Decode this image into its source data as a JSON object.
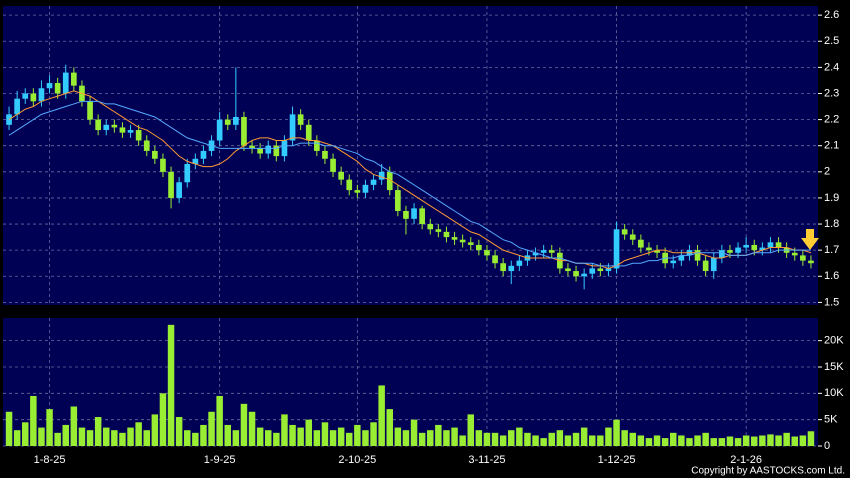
{
  "chart_data": [
    {
      "type": "candlestick",
      "up_color": "#33ccff",
      "down_color": "#99ee33",
      "grid": true,
      "ylim": [
        1.49,
        2.635
      ],
      "yticks": [
        1.5,
        1.6,
        1.7,
        1.8,
        1.9,
        2,
        2.1,
        2.2,
        2.3,
        2.4,
        2.5,
        2.6
      ],
      "categories": [
        null,
        null,
        null,
        null,
        null,
        "1-8-25",
        null,
        null,
        null,
        null,
        null,
        null,
        null,
        null,
        null,
        null,
        null,
        null,
        null,
        null,
        null,
        null,
        null,
        null,
        null,
        null,
        "1-9-25",
        null,
        null,
        null,
        null,
        null,
        null,
        null,
        null,
        null,
        null,
        null,
        null,
        null,
        null,
        null,
        null,
        "2-10-25",
        null,
        null,
        null,
        null,
        null,
        null,
        null,
        null,
        null,
        null,
        null,
        null,
        null,
        null,
        null,
        "3-11-25",
        null,
        null,
        null,
        null,
        null,
        null,
        null,
        null,
        null,
        null,
        null,
        null,
        null,
        null,
        null,
        "1-12-25",
        null,
        null,
        null,
        null,
        null,
        null,
        null,
        null,
        null,
        null,
        null,
        null,
        null,
        null,
        null,
        "2-1-26",
        null,
        null,
        null,
        null,
        null,
        null,
        null,
        null
      ],
      "open": [
        2.18,
        2.22,
        2.28,
        2.3,
        2.27,
        2.32,
        2.34,
        2.3,
        2.38,
        2.33,
        2.27,
        2.2,
        2.16,
        2.18,
        2.17,
        2.15,
        2.16,
        2.12,
        2.08,
        2.05,
        2.0,
        1.9,
        1.96,
        2.03,
        2.05,
        2.08,
        2.12,
        2.2,
        2.18,
        2.21,
        2.1,
        2.09,
        2.07,
        2.1,
        2.06,
        2.12,
        2.22,
        2.18,
        2.12,
        2.08,
        2.05,
        2.0,
        1.97,
        1.93,
        1.92,
        1.95,
        1.97,
        2.0,
        1.93,
        1.85,
        1.82,
        1.86,
        1.8,
        1.78,
        1.77,
        1.75,
        1.74,
        1.73,
        1.72,
        1.7,
        1.68,
        1.65,
        1.62,
        1.64,
        1.66,
        1.68,
        1.69,
        1.7,
        1.69,
        1.63,
        1.62,
        1.6,
        1.61,
        1.63,
        1.62,
        1.63,
        1.78,
        1.76,
        1.74,
        1.71,
        1.7,
        1.69,
        1.65,
        1.66,
        1.68,
        1.7,
        1.66,
        1.62,
        1.67,
        1.7,
        1.69,
        1.71,
        1.72,
        1.7,
        1.71,
        1.73,
        1.71,
        1.69,
        1.68,
        1.66
      ],
      "high": [
        2.25,
        2.31,
        2.32,
        2.32,
        2.35,
        2.37,
        2.36,
        2.41,
        2.4,
        2.35,
        2.29,
        2.22,
        2.2,
        2.2,
        2.19,
        2.18,
        2.18,
        2.14,
        2.1,
        2.07,
        2.02,
        1.98,
        2.05,
        2.07,
        2.1,
        2.14,
        2.23,
        2.22,
        2.4,
        2.23,
        2.12,
        2.11,
        2.12,
        2.12,
        2.14,
        2.25,
        2.24,
        2.2,
        2.14,
        2.1,
        2.07,
        2.02,
        1.99,
        1.95,
        1.97,
        1.99,
        2.03,
        2.02,
        1.95,
        1.87,
        1.88,
        1.87,
        1.82,
        1.8,
        1.79,
        1.77,
        1.76,
        1.75,
        1.74,
        1.72,
        1.7,
        1.67,
        1.66,
        1.68,
        1.7,
        1.71,
        1.72,
        1.72,
        1.71,
        1.65,
        1.64,
        1.63,
        1.65,
        1.65,
        1.65,
        1.81,
        1.8,
        1.78,
        1.76,
        1.73,
        1.72,
        1.71,
        1.68,
        1.7,
        1.72,
        1.72,
        1.68,
        1.69,
        1.72,
        1.72,
        1.73,
        1.75,
        1.74,
        1.73,
        1.75,
        1.75,
        1.73,
        1.71,
        1.7,
        1.68
      ],
      "low": [
        2.16,
        2.2,
        2.26,
        2.25,
        2.25,
        2.3,
        2.28,
        2.28,
        2.31,
        2.25,
        2.18,
        2.14,
        2.14,
        2.15,
        2.13,
        2.13,
        2.1,
        2.06,
        2.03,
        1.98,
        1.86,
        1.88,
        1.94,
        2.01,
        2.03,
        2.06,
        2.1,
        2.16,
        2.16,
        2.08,
        2.07,
        2.05,
        2.05,
        2.04,
        2.04,
        2.1,
        2.16,
        2.1,
        2.06,
        2.03,
        1.98,
        1.95,
        1.91,
        1.9,
        1.9,
        1.93,
        1.95,
        1.91,
        1.83,
        1.76,
        1.8,
        1.78,
        1.76,
        1.75,
        1.73,
        1.72,
        1.71,
        1.7,
        1.68,
        1.66,
        1.63,
        1.6,
        1.57,
        1.62,
        1.64,
        1.66,
        1.67,
        1.67,
        1.61,
        1.6,
        1.58,
        1.55,
        1.59,
        1.6,
        1.6,
        1.61,
        1.74,
        1.72,
        1.69,
        1.68,
        1.67,
        1.63,
        1.63,
        1.64,
        1.66,
        1.64,
        1.6,
        1.59,
        1.65,
        1.67,
        1.67,
        1.69,
        1.68,
        1.68,
        1.69,
        1.69,
        1.67,
        1.66,
        1.64,
        1.63
      ],
      "close": [
        2.22,
        2.28,
        2.3,
        2.27,
        2.32,
        2.34,
        2.3,
        2.38,
        2.33,
        2.27,
        2.2,
        2.16,
        2.18,
        2.17,
        2.15,
        2.16,
        2.12,
        2.08,
        2.05,
        2.0,
        1.9,
        1.96,
        2.03,
        2.05,
        2.08,
        2.12,
        2.2,
        2.18,
        2.21,
        2.1,
        2.09,
        2.07,
        2.1,
        2.06,
        2.12,
        2.22,
        2.18,
        2.12,
        2.08,
        2.05,
        2.0,
        1.97,
        1.93,
        1.92,
        1.95,
        1.97,
        2.0,
        1.93,
        1.85,
        1.82,
        1.86,
        1.8,
        1.78,
        1.77,
        1.75,
        1.74,
        1.73,
        1.72,
        1.7,
        1.68,
        1.65,
        1.62,
        1.64,
        1.66,
        1.68,
        1.69,
        1.7,
        1.69,
        1.63,
        1.62,
        1.6,
        1.61,
        1.63,
        1.62,
        1.63,
        1.78,
        1.76,
        1.74,
        1.71,
        1.7,
        1.69,
        1.65,
        1.66,
        1.68,
        1.7,
        1.66,
        1.62,
        1.67,
        1.7,
        1.69,
        1.71,
        1.72,
        1.7,
        1.71,
        1.73,
        1.71,
        1.69,
        1.68,
        1.66,
        1.65
      ],
      "lines": [
        {
          "color": "#ff9933",
          "values": [
            2.2,
            2.22,
            2.24,
            2.25,
            2.27,
            2.28,
            2.29,
            2.3,
            2.31,
            2.3,
            2.29,
            2.27,
            2.25,
            2.23,
            2.21,
            2.19,
            2.17,
            2.16,
            2.14,
            2.12,
            2.09,
            2.06,
            2.04,
            2.03,
            2.02,
            2.02,
            2.03,
            2.05,
            2.08,
            2.1,
            2.12,
            2.13,
            2.13,
            2.12,
            2.12,
            2.13,
            2.13,
            2.12,
            2.12,
            2.11,
            2.1,
            2.08,
            2.06,
            2.04,
            2.01,
            1.99,
            1.98,
            1.97,
            1.95,
            1.93,
            1.91,
            1.89,
            1.87,
            1.85,
            1.83,
            1.81,
            1.79,
            1.77,
            1.76,
            1.74,
            1.72,
            1.7,
            1.69,
            1.68,
            1.67,
            1.67,
            1.67,
            1.67,
            1.66,
            1.66,
            1.65,
            1.65,
            1.64,
            1.64,
            1.63,
            1.64,
            1.66,
            1.67,
            1.68,
            1.69,
            1.7,
            1.7,
            1.69,
            1.69,
            1.69,
            1.69,
            1.68,
            1.67,
            1.67,
            1.68,
            1.68,
            1.68,
            1.69,
            1.7,
            1.71,
            1.71,
            1.71,
            1.7,
            1.7,
            1.69
          ]
        },
        {
          "color": "#55aaff",
          "values": [
            2.14,
            2.16,
            2.18,
            2.2,
            2.22,
            2.23,
            2.24,
            2.25,
            2.26,
            2.27,
            2.27,
            2.27,
            2.26,
            2.26,
            2.25,
            2.24,
            2.23,
            2.22,
            2.21,
            2.19,
            2.17,
            2.15,
            2.13,
            2.12,
            2.11,
            2.1,
            2.09,
            2.09,
            2.09,
            2.09,
            2.09,
            2.09,
            2.09,
            2.09,
            2.1,
            2.1,
            2.11,
            2.11,
            2.11,
            2.1,
            2.1,
            2.09,
            2.08,
            2.07,
            2.05,
            2.04,
            2.02,
            2.0,
            1.99,
            1.97,
            1.95,
            1.93,
            1.91,
            1.89,
            1.87,
            1.85,
            1.83,
            1.81,
            1.8,
            1.78,
            1.76,
            1.74,
            1.73,
            1.71,
            1.7,
            1.69,
            1.68,
            1.67,
            1.67,
            1.66,
            1.65,
            1.65,
            1.65,
            1.64,
            1.64,
            1.64,
            1.64,
            1.65,
            1.65,
            1.66,
            1.66,
            1.67,
            1.67,
            1.68,
            1.68,
            1.69,
            1.69,
            1.69,
            1.69,
            1.68,
            1.68,
            1.68,
            1.69,
            1.69,
            1.69,
            1.7,
            1.7,
            1.7,
            1.7,
            1.7
          ]
        }
      ]
    },
    {
      "type": "bar",
      "color": "#99ee33",
      "grid": true,
      "ylim": [
        0,
        24300
      ],
      "yticks": [
        0,
        {
          "value": 5000,
          "label": "5K"
        },
        {
          "value": 10000,
          "label": "10K"
        },
        {
          "value": 15000,
          "label": "15K"
        },
        {
          "value": 20000,
          "label": "20K"
        }
      ],
      "values": [
        6500,
        3000,
        4500,
        9500,
        3500,
        7000,
        2500,
        4000,
        7500,
        3500,
        3000,
        5500,
        3500,
        3000,
        2500,
        3500,
        4500,
        3000,
        6000,
        10000,
        23000,
        5500,
        3000,
        2500,
        4000,
        6500,
        9500,
        4000,
        3000,
        8000,
        6500,
        3500,
        3000,
        2500,
        6000,
        4000,
        3500,
        5000,
        3000,
        4500,
        3000,
        3500,
        2500,
        4000,
        3000,
        4500,
        11500,
        7000,
        3500,
        3000,
        5000,
        2500,
        3000,
        4000,
        3000,
        3500,
        2000,
        6000,
        3000,
        2500,
        2500,
        2000,
        3000,
        3500,
        2500,
        2000,
        1500,
        2500,
        3000,
        2000,
        2500,
        3500,
        2000,
        2000,
        3500,
        5000,
        3000,
        2500,
        2000,
        1500,
        2000,
        1500,
        2500,
        2000,
        1500,
        2000,
        2500,
        1500,
        1500,
        1800,
        1500,
        2000,
        1800,
        2000,
        2200,
        2000,
        2500,
        1800,
        2000,
        2800
      ]
    }
  ],
  "copyright": "Copyright by AASTOCKS.com Ltd."
}
